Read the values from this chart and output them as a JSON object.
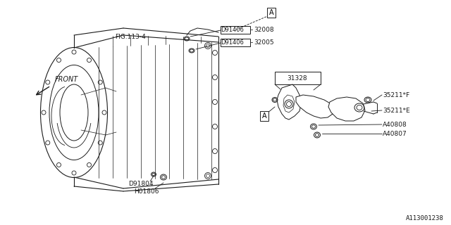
{
  "bg_color": "#ffffff",
  "line_color": "#1a1a1a",
  "title_id": "A113001238",
  "labels": {
    "fig": "FIG.113-4",
    "front": "FRONT",
    "32008": "32008",
    "32005": "32005",
    "D91406_top": "D91406",
    "D91406_mid": "D91406",
    "D91804": "D91804",
    "H01806": "H01806",
    "31328": "31328",
    "35211F": "35211*F",
    "35211E": "35211*E",
    "A40808": "A40808",
    "A40807": "A40807",
    "A_top": "A",
    "A_bottom": "A"
  }
}
